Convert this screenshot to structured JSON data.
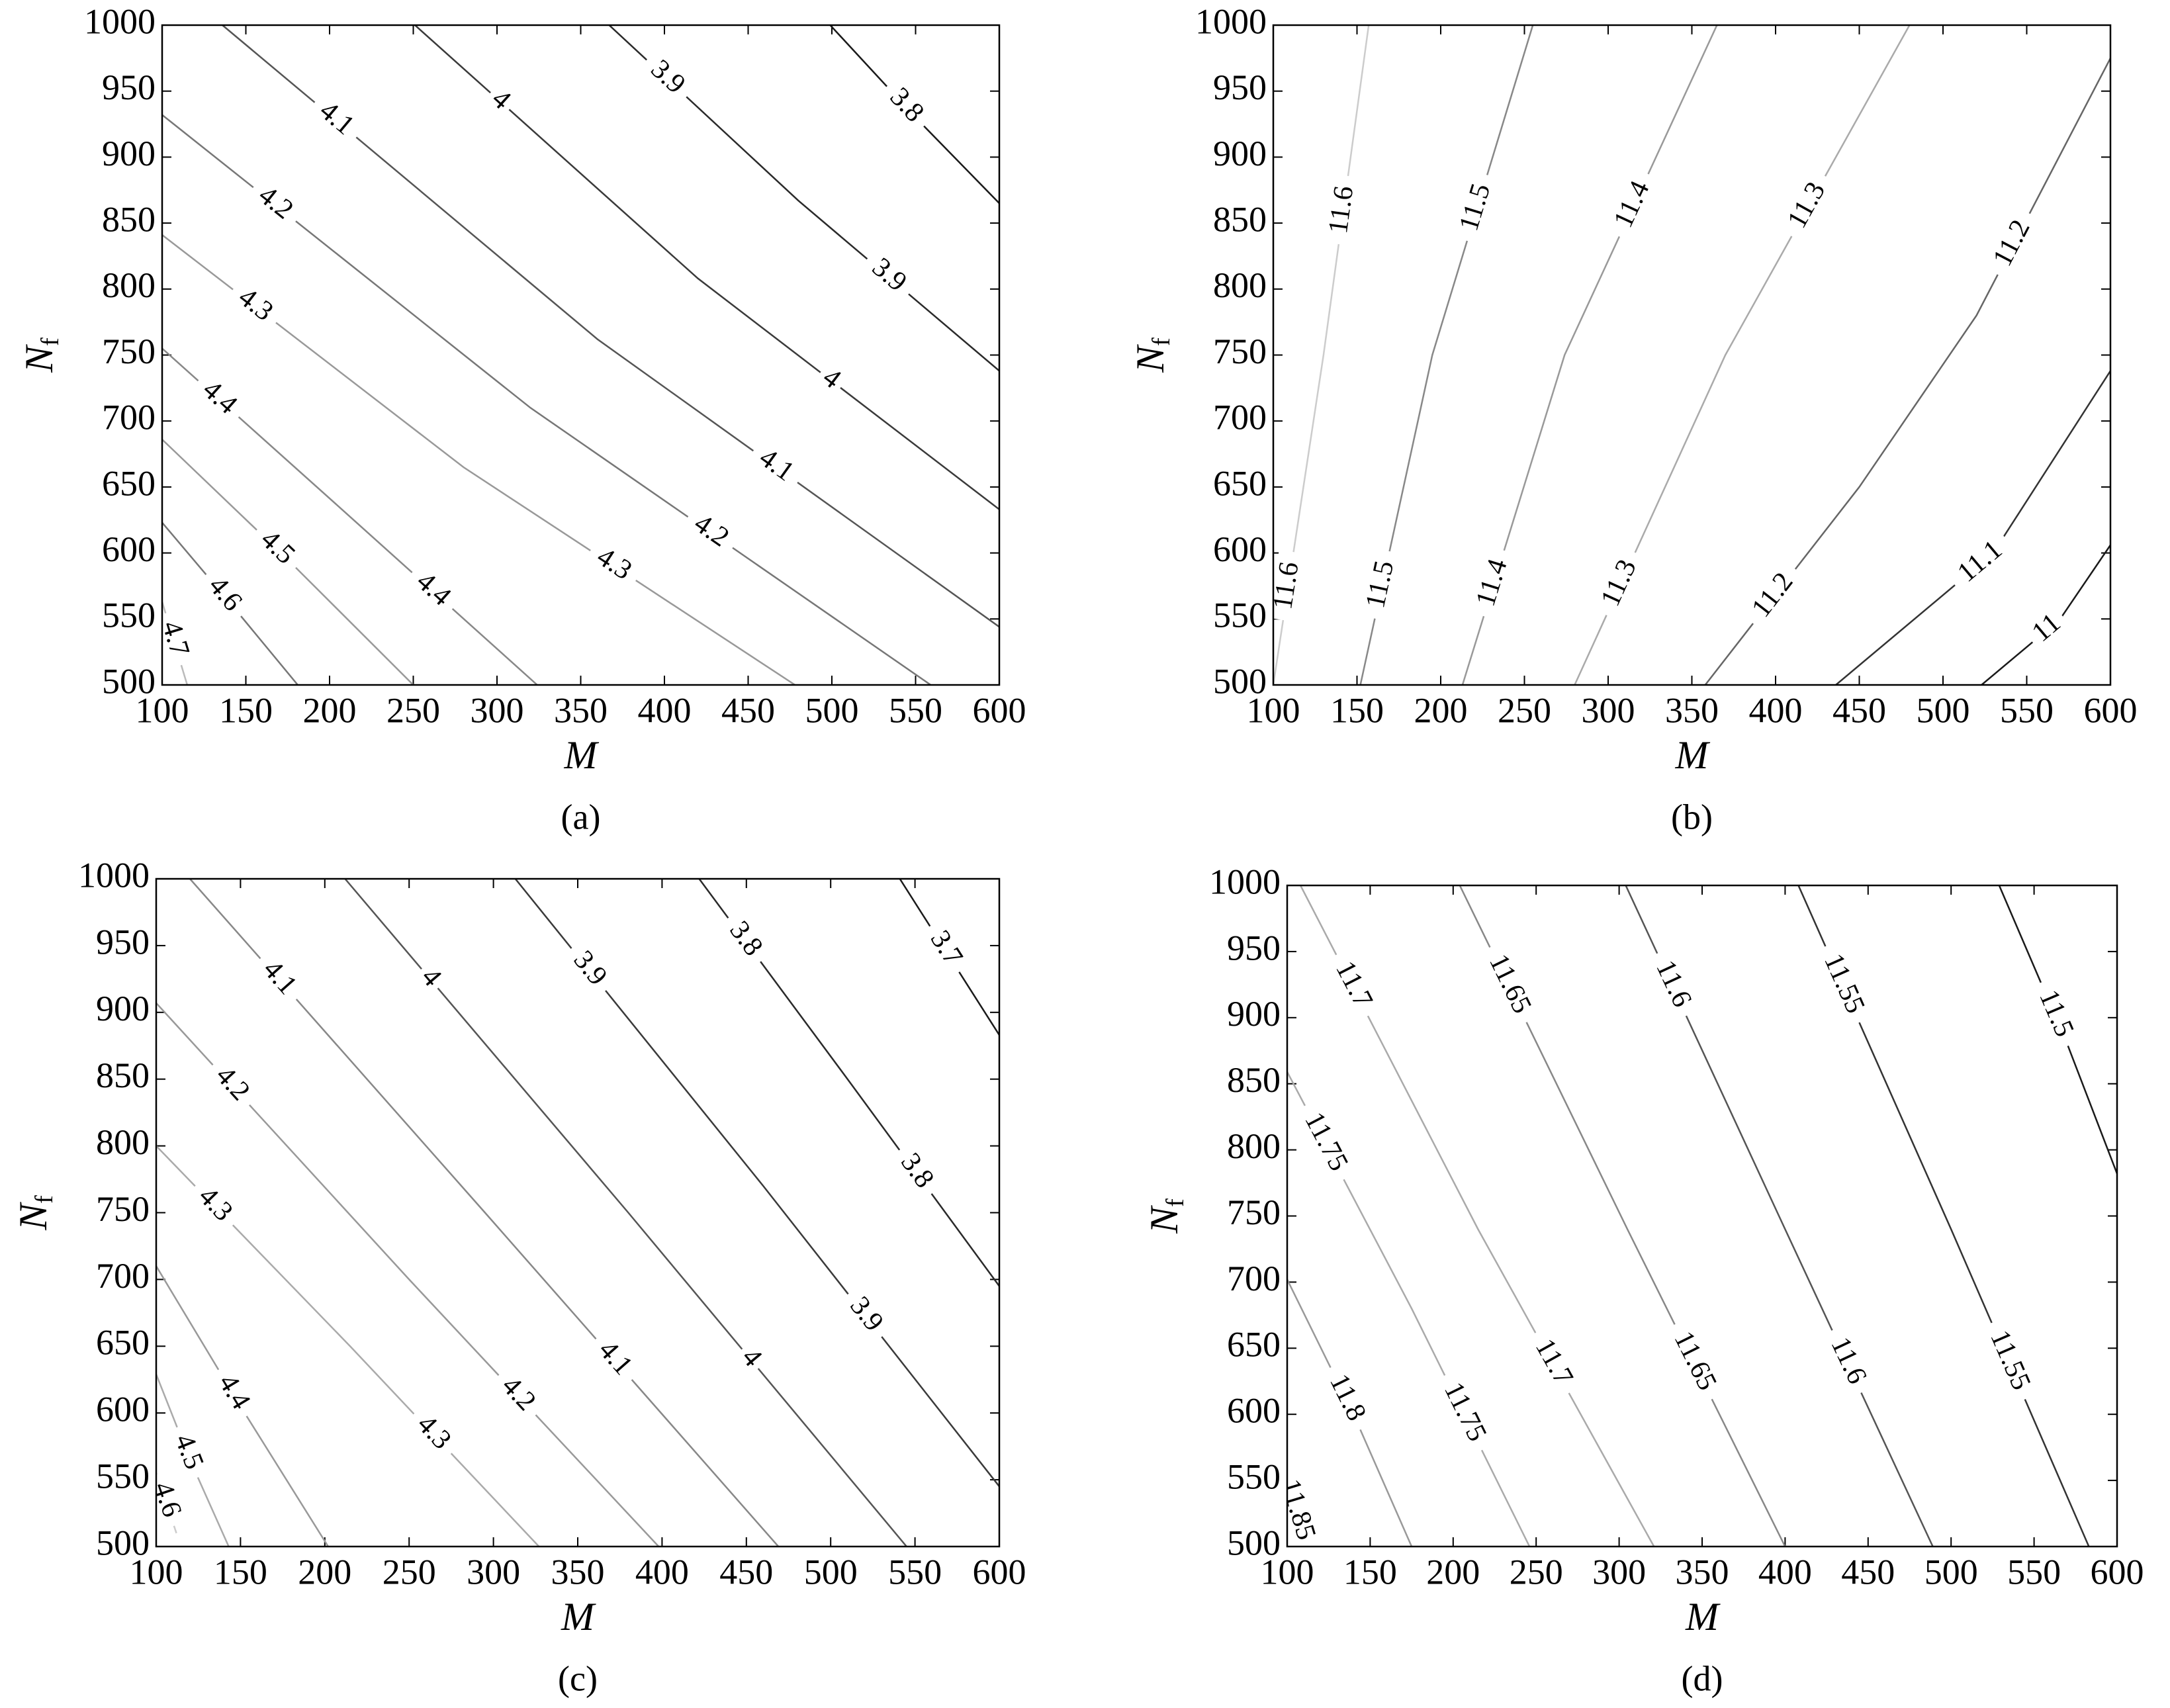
{
  "chart_data": [
    {
      "type": "contour",
      "caption": "(a)",
      "xlabel": "M",
      "ylabel": "N",
      "ylabel_sub": "f",
      "xlim": [
        100,
        600
      ],
      "ylim": [
        500,
        1000
      ],
      "xticks": [
        100,
        150,
        200,
        250,
        300,
        350,
        400,
        450,
        500,
        550,
        600
      ],
      "yticks": [
        500,
        550,
        600,
        650,
        700,
        750,
        800,
        850,
        900,
        950,
        1000
      ],
      "contours": [
        {
          "level": 3.8,
          "color": "#1a1a1a",
          "x": [
            499,
            550,
            600
          ],
          "y": [
            1000,
            930,
            865
          ]
        },
        {
          "level": 3.9,
          "color": "#2a2a2a",
          "x": [
            367,
            480,
            600
          ],
          "y": [
            1000,
            867,
            738
          ]
        },
        {
          "level": 4,
          "color": "#3a3a3a",
          "x": [
            251,
            420,
            600
          ],
          "y": [
            1000,
            808,
            633
          ]
        },
        {
          "level": 4.1,
          "color": "#555555",
          "x": [
            136,
            360,
            600
          ],
          "y": [
            1000,
            762,
            544
          ]
        },
        {
          "level": 4.2,
          "color": "#777777",
          "x": [
            100,
            320,
            559
          ],
          "y": [
            932,
            710,
            500
          ]
        },
        {
          "level": 4.3,
          "color": "#999999",
          "x": [
            100,
            280,
            478
          ],
          "y": [
            841,
            665,
            500
          ]
        },
        {
          "level": 4.4,
          "color": "#888888",
          "x": [
            100,
            210,
            324
          ],
          "y": [
            755,
            630,
            500
          ]
        },
        {
          "level": 4.5,
          "color": "#999999",
          "x": [
            100,
            175,
            250
          ],
          "y": [
            686,
            595,
            500
          ]
        },
        {
          "level": 4.6,
          "color": "#777777",
          "x": [
            100,
            140,
            181
          ],
          "y": [
            623,
            563,
            500
          ]
        },
        {
          "level": 4.7,
          "color": "#bbbbbb",
          "x": [
            100,
            115
          ],
          "y": [
            563,
            500
          ]
        }
      ]
    },
    {
      "type": "contour",
      "caption": "(b)",
      "xlabel": "M",
      "ylabel": "N",
      "ylabel_sub": "f",
      "xlim": [
        100,
        600
      ],
      "ylim": [
        500,
        1000
      ],
      "xticks": [
        100,
        150,
        200,
        250,
        300,
        350,
        400,
        450,
        500,
        550,
        600
      ],
      "yticks": [
        500,
        550,
        600,
        650,
        700,
        750,
        800,
        850,
        900,
        950,
        1000
      ],
      "contours": [
        {
          "level": 11.6,
          "color": "#cccccc",
          "x": [
            100,
            130,
            157
          ],
          "y": [
            500,
            750,
            1000
          ]
        },
        {
          "level": 11.5,
          "color": "#888888",
          "x": [
            152,
            195,
            255
          ],
          "y": [
            500,
            750,
            1000
          ]
        },
        {
          "level": 11.4,
          "color": "#999999",
          "x": [
            213,
            274,
            365
          ],
          "y": [
            500,
            750,
            1000
          ]
        },
        {
          "level": 11.3,
          "color": "#aaaaaa",
          "x": [
            280,
            370,
            480
          ],
          "y": [
            500,
            750,
            1000
          ]
        },
        {
          "level": 11.2,
          "color": "#666666",
          "x": [
            358,
            450,
            520,
            600
          ],
          "y": [
            500,
            650,
            780,
            975
          ]
        },
        {
          "level": 11.1,
          "color": "#333333",
          "x": [
            436,
            530,
            600
          ],
          "y": [
            500,
            600,
            738
          ]
        },
        {
          "level": 11,
          "color": "#1a1a1a",
          "x": [
            523,
            570,
            600
          ],
          "y": [
            500,
            550,
            606
          ]
        }
      ]
    },
    {
      "type": "contour",
      "caption": "(c)",
      "xlabel": "M",
      "ylabel": "N",
      "ylabel_sub": "f",
      "xlim": [
        100,
        600
      ],
      "ylim": [
        500,
        1000
      ],
      "xticks": [
        100,
        150,
        200,
        250,
        300,
        350,
        400,
        450,
        500,
        550,
        600
      ],
      "yticks": [
        500,
        550,
        600,
        650,
        700,
        750,
        800,
        850,
        900,
        950,
        1000
      ],
      "contours": [
        {
          "level": 3.7,
          "color": "#1a1a1a",
          "x": [
            541,
            600
          ],
          "y": [
            1000,
            883
          ]
        },
        {
          "level": 3.8,
          "color": "#2a2a2a",
          "x": [
            422,
            510,
            600
          ],
          "y": [
            1000,
            850,
            695
          ]
        },
        {
          "level": 3.9,
          "color": "#3a3a3a",
          "x": [
            313,
            460,
            600
          ],
          "y": [
            1000,
            770,
            545
          ]
        },
        {
          "level": 4,
          "color": "#555555",
          "x": [
            212,
            380,
            545
          ],
          "y": [
            1000,
            750,
            500
          ]
        },
        {
          "level": 4.1,
          "color": "#888888",
          "x": [
            120,
            295,
            469
          ],
          "y": [
            1000,
            750,
            500
          ]
        },
        {
          "level": 4.2,
          "color": "#999999",
          "x": [
            100,
            250,
            398
          ],
          "y": [
            907,
            700,
            500
          ]
        },
        {
          "level": 4.3,
          "color": "#aaaaaa",
          "x": [
            100,
            215,
            327
          ],
          "y": [
            800,
            650,
            500
          ]
        },
        {
          "level": 4.4,
          "color": "#999999",
          "x": [
            100,
            150,
            202
          ],
          "y": [
            710,
            605,
            500
          ]
        },
        {
          "level": 4.5,
          "color": "#aaaaaa",
          "x": [
            100,
            120,
            143
          ],
          "y": [
            629,
            565,
            500
          ]
        },
        {
          "level": 4.6,
          "color": "#cccccc",
          "x": [
            100,
            112
          ],
          "y": [
            555,
            510
          ]
        }
      ]
    },
    {
      "type": "contour",
      "caption": "(d)",
      "xlabel": "M",
      "ylabel": "N",
      "ylabel_sub": "f",
      "xlim": [
        100,
        600
      ],
      "ylim": [
        500,
        1000
      ],
      "xticks": [
        100,
        150,
        200,
        250,
        300,
        350,
        400,
        450,
        500,
        550,
        600
      ],
      "yticks": [
        500,
        550,
        600,
        650,
        700,
        750,
        800,
        850,
        900,
        950,
        1000
      ],
      "contours": [
        {
          "level": 11.5,
          "color": "#1a1a1a",
          "x": [
            529,
            570,
            600
          ],
          "y": [
            1000,
            880,
            782
          ]
        },
        {
          "level": 11.55,
          "color": "#333333",
          "x": [
            408,
            500,
            583
          ],
          "y": [
            1000,
            740,
            500
          ]
        },
        {
          "level": 11.6,
          "color": "#555555",
          "x": [
            304,
            400,
            489
          ],
          "y": [
            1000,
            740,
            500
          ]
        },
        {
          "level": 11.65,
          "color": "#888888",
          "x": [
            204,
            305,
            400
          ],
          "y": [
            1000,
            740,
            500
          ]
        },
        {
          "level": 11.7,
          "color": "#aaaaaa",
          "x": [
            108,
            215,
            321
          ],
          "y": [
            1000,
            740,
            500
          ]
        },
        {
          "level": 11.75,
          "color": "#aaaaaa",
          "x": [
            100,
            175,
            246
          ],
          "y": [
            859,
            680,
            500
          ]
        },
        {
          "level": 11.8,
          "color": "#999999",
          "x": [
            100,
            140,
            175
          ],
          "y": [
            702,
            600,
            500
          ]
        },
        {
          "level": 11.85,
          "color": "#dddddd",
          "x": [
            100,
            112
          ],
          "y": [
            550,
            500
          ]
        }
      ]
    }
  ]
}
